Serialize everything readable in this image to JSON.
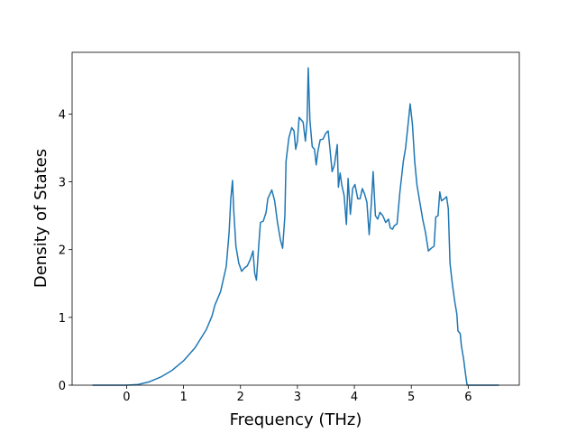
{
  "chart_data": {
    "type": "line",
    "xlabel": "Frequency (THz)",
    "ylabel": "Density of States",
    "color": "#1f77b4",
    "x": [
      -0.6,
      0,
      0.2,
      0.4,
      0.6,
      0.8,
      1.0,
      1.2,
      1.4,
      1.5,
      1.55,
      1.65,
      1.75,
      1.8,
      1.83,
      1.86,
      1.88,
      1.92,
      1.97,
      2.02,
      2.07,
      2.12,
      2.17,
      2.22,
      2.25,
      2.28,
      2.32,
      2.35,
      2.4,
      2.45,
      2.48,
      2.55,
      2.6,
      2.65,
      2.7,
      2.74,
      2.78,
      2.8,
      2.85,
      2.9,
      2.94,
      2.97,
      3.0,
      3.03,
      3.1,
      3.14,
      3.17,
      3.19,
      3.22,
      3.26,
      3.3,
      3.33,
      3.36,
      3.4,
      3.45,
      3.5,
      3.54,
      3.57,
      3.61,
      3.65,
      3.7,
      3.72,
      3.75,
      3.78,
      3.82,
      3.86,
      3.89,
      3.93,
      3.97,
      4.01,
      4.06,
      4.1,
      4.14,
      4.18,
      4.22,
      4.26,
      4.3,
      4.33,
      4.37,
      4.41,
      4.45,
      4.5,
      4.55,
      4.6,
      4.63,
      4.67,
      4.7,
      4.75,
      4.8,
      4.86,
      4.9,
      4.95,
      4.98,
      5.02,
      5.06,
      5.1,
      5.15,
      5.2,
      5.25,
      5.3,
      5.35,
      5.4,
      5.43,
      5.47,
      5.5,
      5.53,
      5.58,
      5.62,
      5.65,
      5.68,
      5.72,
      5.76,
      5.8,
      5.82,
      5.86,
      5.88,
      5.92,
      5.95,
      5.98,
      6.2,
      6.54
    ],
    "values": [
      0,
      0,
      0.01,
      0.05,
      0.12,
      0.22,
      0.36,
      0.55,
      0.82,
      1.02,
      1.18,
      1.38,
      1.75,
      2.25,
      2.75,
      3.02,
      2.6,
      2.05,
      1.8,
      1.68,
      1.73,
      1.76,
      1.85,
      1.98,
      1.65,
      1.55,
      2.05,
      2.4,
      2.42,
      2.55,
      2.75,
      2.88,
      2.72,
      2.4,
      2.15,
      2.02,
      2.5,
      3.3,
      3.65,
      3.8,
      3.75,
      3.48,
      3.6,
      3.95,
      3.88,
      3.6,
      3.9,
      4.68,
      3.9,
      3.52,
      3.48,
      3.25,
      3.45,
      3.62,
      3.63,
      3.72,
      3.75,
      3.5,
      3.15,
      3.25,
      3.55,
      2.92,
      3.13,
      2.95,
      2.8,
      2.37,
      3.05,
      2.52,
      2.9,
      2.96,
      2.75,
      2.75,
      2.9,
      2.82,
      2.7,
      2.22,
      2.7,
      3.15,
      2.5,
      2.45,
      2.55,
      2.5,
      2.4,
      2.45,
      2.32,
      2.3,
      2.35,
      2.38,
      2.85,
      3.3,
      3.5,
      3.9,
      4.15,
      3.85,
      3.3,
      2.95,
      2.7,
      2.45,
      2.25,
      1.98,
      2.02,
      2.05,
      2.48,
      2.5,
      2.85,
      2.72,
      2.75,
      2.78,
      2.6,
      1.8,
      1.5,
      1.25,
      1.05,
      0.8,
      0.76,
      0.58,
      0.38,
      0.18,
      0.0,
      0,
      0
    ],
    "xlim": [
      -0.957,
      6.897
    ],
    "ylim": [
      0,
      4.91
    ],
    "xticks": [
      0,
      1,
      2,
      3,
      4,
      5,
      6
    ],
    "yticks": [
      0,
      1,
      2,
      3,
      4
    ]
  }
}
